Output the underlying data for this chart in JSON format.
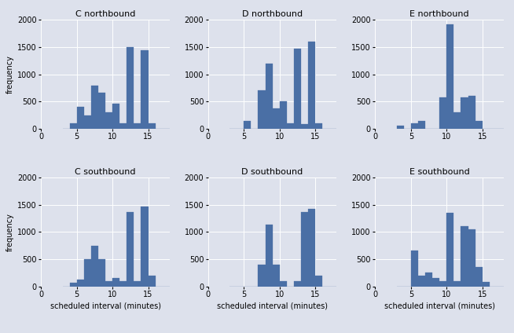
{
  "titles": [
    "C northbound",
    "D northbound",
    "E northbound",
    "C southbound",
    "D southbound",
    "E southbound"
  ],
  "bar_color": "#4a6fa5",
  "bg_color": "#dde1ec",
  "fig_bg_color": "#dde1ec",
  "ylabel": "frequency",
  "xlabel": "scheduled interval (minutes)",
  "xlim": [
    0,
    18
  ],
  "ylim": [
    0,
    2000
  ],
  "yticks": [
    0,
    500,
    1000,
    1500,
    2000
  ],
  "xticks": [
    0,
    5,
    10,
    15
  ],
  "bin_edges": [
    3,
    4,
    5,
    6,
    7,
    8,
    9,
    10,
    11,
    12,
    13,
    14,
    15,
    16,
    17,
    18
  ],
  "histograms": {
    "C northbound": [
      0,
      100,
      400,
      250,
      800,
      670,
      300,
      460,
      100,
      1500,
      100,
      1440,
      100,
      0,
      0
    ],
    "D northbound": [
      0,
      0,
      150,
      0,
      700,
      1200,
      380,
      500,
      100,
      1470,
      80,
      1600,
      100,
      0,
      0
    ],
    "E northbound": [
      50,
      0,
      100,
      150,
      0,
      0,
      570,
      1920,
      300,
      570,
      600,
      150,
      0,
      0,
      0
    ],
    "C southbound": [
      0,
      70,
      130,
      500,
      750,
      500,
      100,
      150,
      100,
      1360,
      100,
      1470,
      200,
      0,
      0
    ],
    "D southbound": [
      0,
      0,
      0,
      0,
      400,
      1130,
      400,
      100,
      0,
      100,
      1360,
      1420,
      200,
      0,
      0
    ],
    "E southbound": [
      0,
      0,
      660,
      200,
      250,
      150,
      100,
      1350,
      100,
      1100,
      1050,
      350,
      80,
      0,
      0
    ]
  }
}
